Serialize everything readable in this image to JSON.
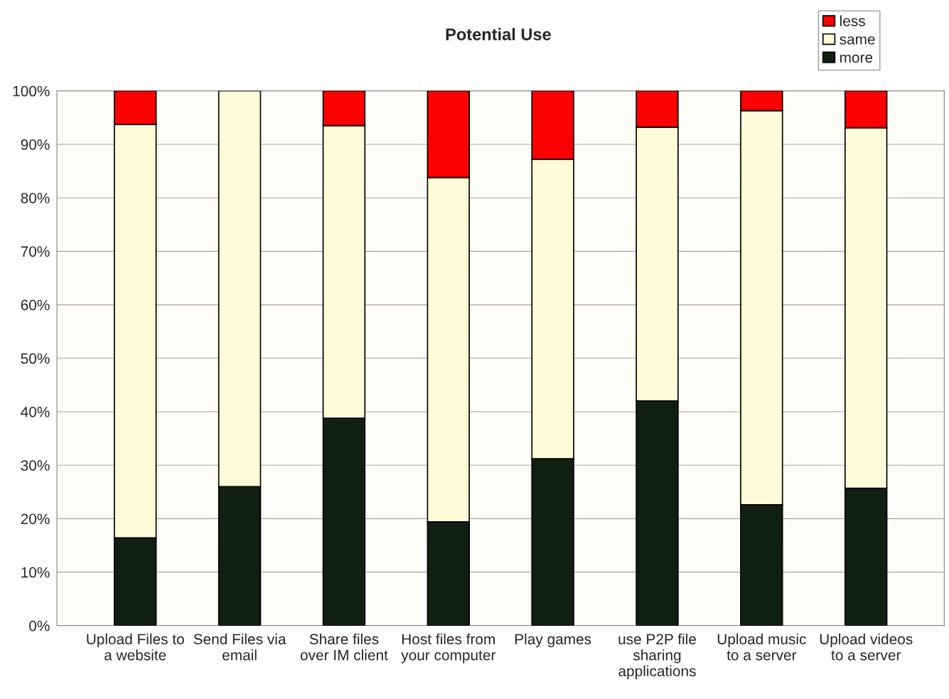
{
  "chart_data": {
    "type": "bar",
    "title": "Potential Use",
    "stacked": true,
    "categories": [
      "Upload Files to\na website",
      "Send Files via\nemail",
      "Share files\nover IM client",
      "Host files from\nyour computer",
      "Play games",
      "use P2P file\nsharing\napplications",
      "Upload music\nto a server",
      "Upload videos\nto a server"
    ],
    "series": [
      {
        "name": "more",
        "color": "#102010",
        "values": [
          16.4,
          26,
          38.8,
          19.4,
          31.2,
          42,
          22.6,
          25.7
        ]
      },
      {
        "name": "same",
        "color": "#fffbd8",
        "values": [
          77.3,
          74,
          54.7,
          64.4,
          56,
          51.2,
          73.7,
          67.4
        ]
      },
      {
        "name": "less",
        "color": "#ff0000",
        "values": [
          6.3,
          0,
          6.5,
          16.2,
          12.8,
          6.8,
          3.7,
          6.9
        ]
      }
    ],
    "ylim": [
      0,
      100
    ],
    "yticks": [
      {
        "value": 0,
        "label": "0%"
      },
      {
        "value": 10,
        "label": "10%"
      },
      {
        "value": 20,
        "label": "20%"
      },
      {
        "value": 30,
        "label": "30%"
      },
      {
        "value": 40,
        "label": "40%"
      },
      {
        "value": 50,
        "label": "50%"
      },
      {
        "value": 60,
        "label": "60%"
      },
      {
        "value": 70,
        "label": "70%"
      },
      {
        "value": 80,
        "label": "80%"
      },
      {
        "value": 90,
        "label": "90%"
      },
      {
        "value": 100,
        "label": "100%"
      }
    ],
    "grid": "y",
    "legend": "top right"
  }
}
